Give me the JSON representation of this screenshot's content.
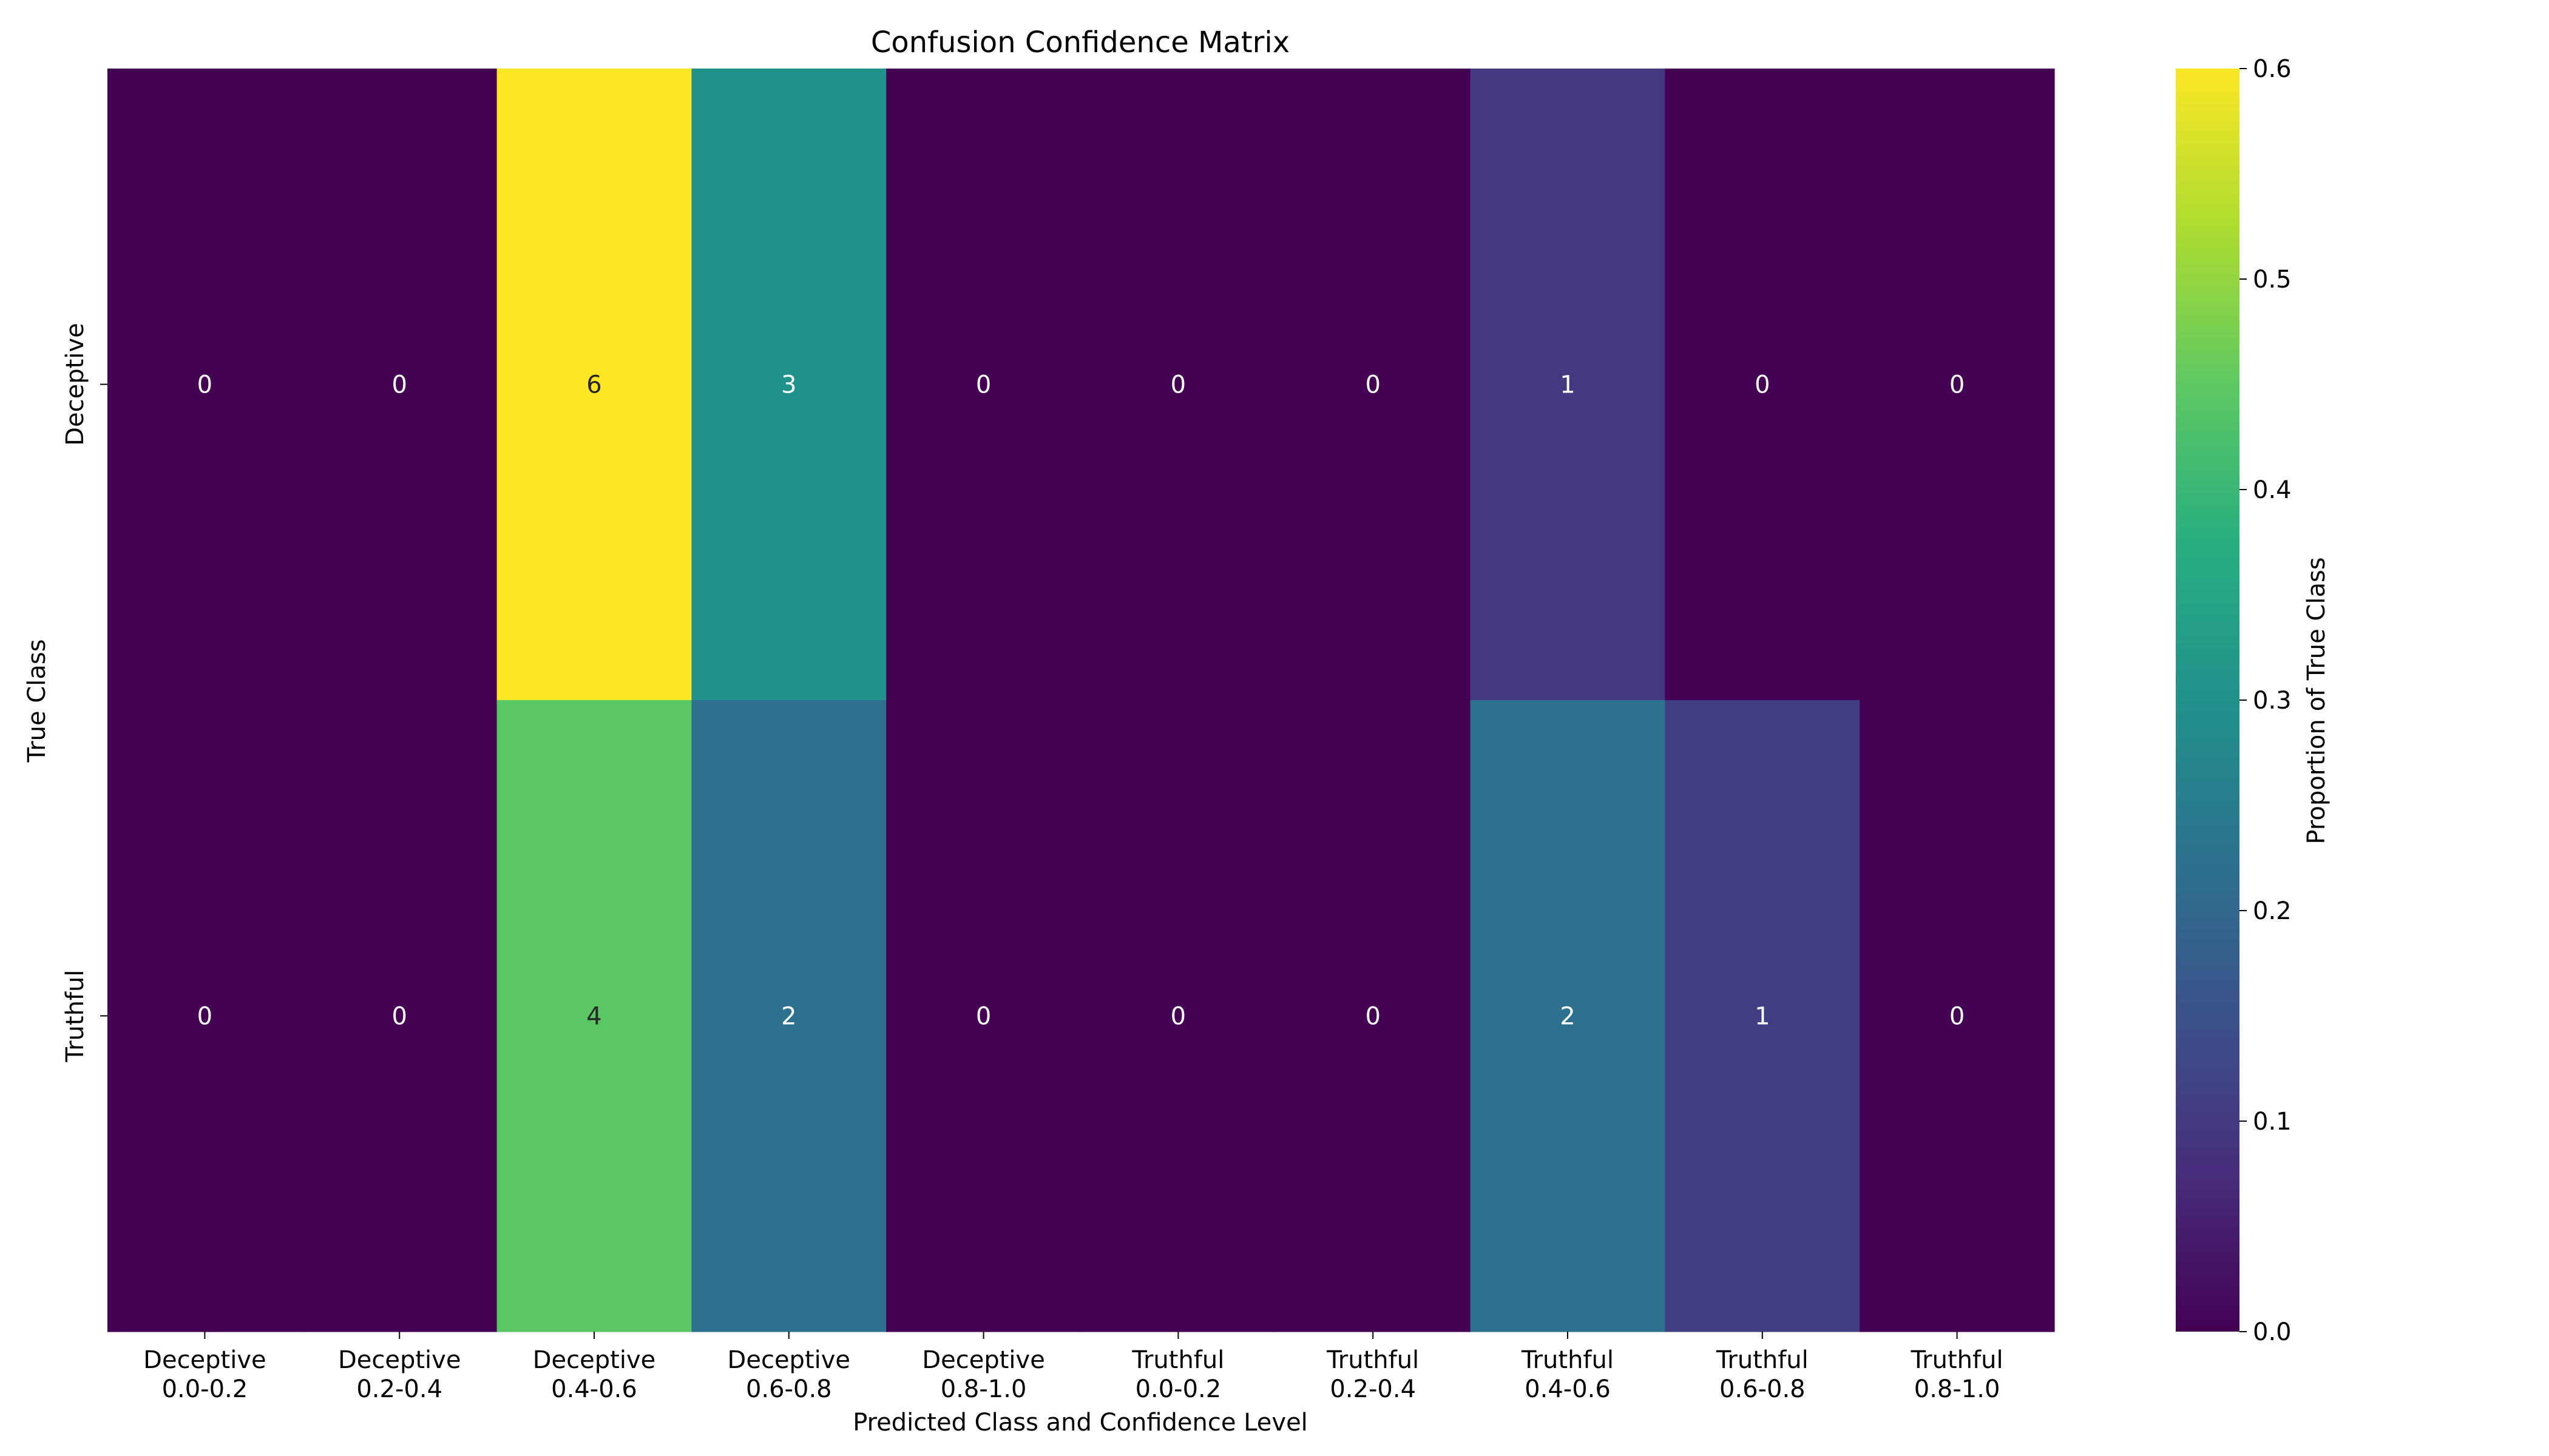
{
  "chart_data": {
    "type": "heatmap",
    "title": "Confusion Confidence Matrix",
    "xlabel": "Predicted Class and Confidence Level",
    "ylabel": "True Class",
    "x_categories": [
      [
        "Deceptive",
        "0.0-0.2"
      ],
      [
        "Deceptive",
        "0.2-0.4"
      ],
      [
        "Deceptive",
        "0.4-0.6"
      ],
      [
        "Deceptive",
        "0.6-0.8"
      ],
      [
        "Deceptive",
        "0.8-1.0"
      ],
      [
        "Truthful",
        "0.0-0.2"
      ],
      [
        "Truthful",
        "0.2-0.4"
      ],
      [
        "Truthful",
        "0.4-0.6"
      ],
      [
        "Truthful",
        "0.6-0.8"
      ],
      [
        "Truthful",
        "0.8-1.0"
      ]
    ],
    "y_categories": [
      "Deceptive",
      "Truthful"
    ],
    "counts": [
      [
        0,
        0,
        6,
        3,
        0,
        0,
        0,
        1,
        0,
        0
      ],
      [
        0,
        0,
        4,
        2,
        0,
        0,
        0,
        2,
        1,
        0
      ]
    ],
    "proportions": [
      [
        0.0,
        0.0,
        0.6,
        0.3,
        0.0,
        0.0,
        0.0,
        0.1,
        0.0,
        0.0
      ],
      [
        0.0,
        0.0,
        0.444,
        0.222,
        0.0,
        0.0,
        0.0,
        0.222,
        0.111,
        0.0
      ]
    ],
    "colorbar": {
      "label": "Proportion of True Class",
      "range": [
        0.0,
        0.6
      ],
      "ticks": [
        "0.0",
        "0.1",
        "0.2",
        "0.3",
        "0.4",
        "0.5",
        "0.6"
      ],
      "colormap": "viridis"
    },
    "grid": false
  }
}
